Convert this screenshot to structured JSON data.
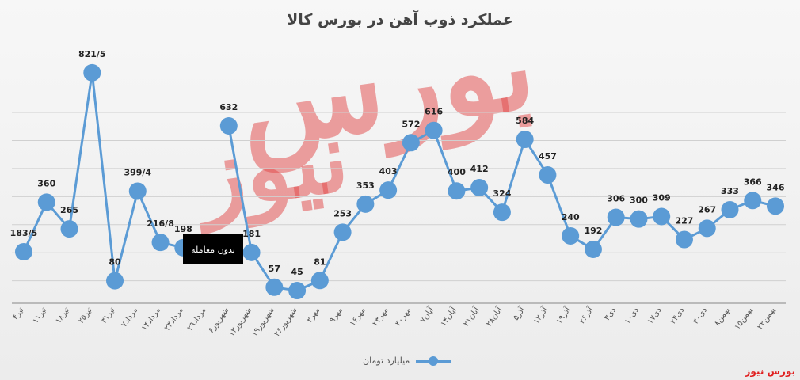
{
  "chart_data": {
    "type": "line",
    "title": "عملکرد ذوب آهن در بورس کالا",
    "categories": [
      "۴تیر",
      "۱۱تیر",
      "۱۸تیر",
      "۲۵تیر",
      "۳۱تیر",
      "۷مرداد",
      "۱۴مرداد",
      "۲۳مرداد",
      "۲۹مرداد",
      "۶شهریور",
      "۱۲شهریور",
      "۱۹شهریور",
      "۲۶شهریور",
      "۲مهر",
      "۹مهر",
      "۱۶مهر",
      "۲۳مهر",
      "۳۰مهر",
      "۷آبان",
      "۱۴آبان",
      "۲۱آبان",
      "۲۸آبان",
      "۵آذر",
      "۱۲آذر",
      "۱۹آذر",
      "۲۶آذر",
      "۳دی",
      "۱۰دی",
      "۱۷دی",
      "۲۴دی",
      "۳۰دی",
      "۸بهمن",
      "۱۵بهمن",
      "۲۲بهمن"
    ],
    "series": [
      {
        "name": "میلیارد تومان",
        "values": [
          183.5,
          360,
          265,
          821.5,
          80,
          399.4,
          216.8,
          198,
          null,
          632,
          181,
          57,
          45,
          81,
          253,
          353,
          403,
          572,
          616,
          400,
          412,
          324,
          584,
          457,
          240,
          192,
          306,
          300,
          309,
          227,
          267,
          333,
          366,
          346
        ],
        "labels": [
          "183/5",
          "360",
          "265",
          "821/5",
          "80",
          "399/4",
          "216/8",
          "198",
          "",
          "632",
          "181",
          "57",
          "45",
          "81",
          "253",
          "353",
          "403",
          "572",
          "616",
          "400",
          "412",
          "324",
          "584",
          "457",
          "240",
          "192",
          "306",
          "300",
          "309",
          "227",
          "267",
          "333",
          "366",
          "346"
        ]
      }
    ],
    "annotation": "بدون معامله",
    "grid": true,
    "legend_position": "bottom",
    "line_color": "#5b9bd5"
  },
  "brand": "بورس نیوز",
  "watermark": "بورس نیوز"
}
